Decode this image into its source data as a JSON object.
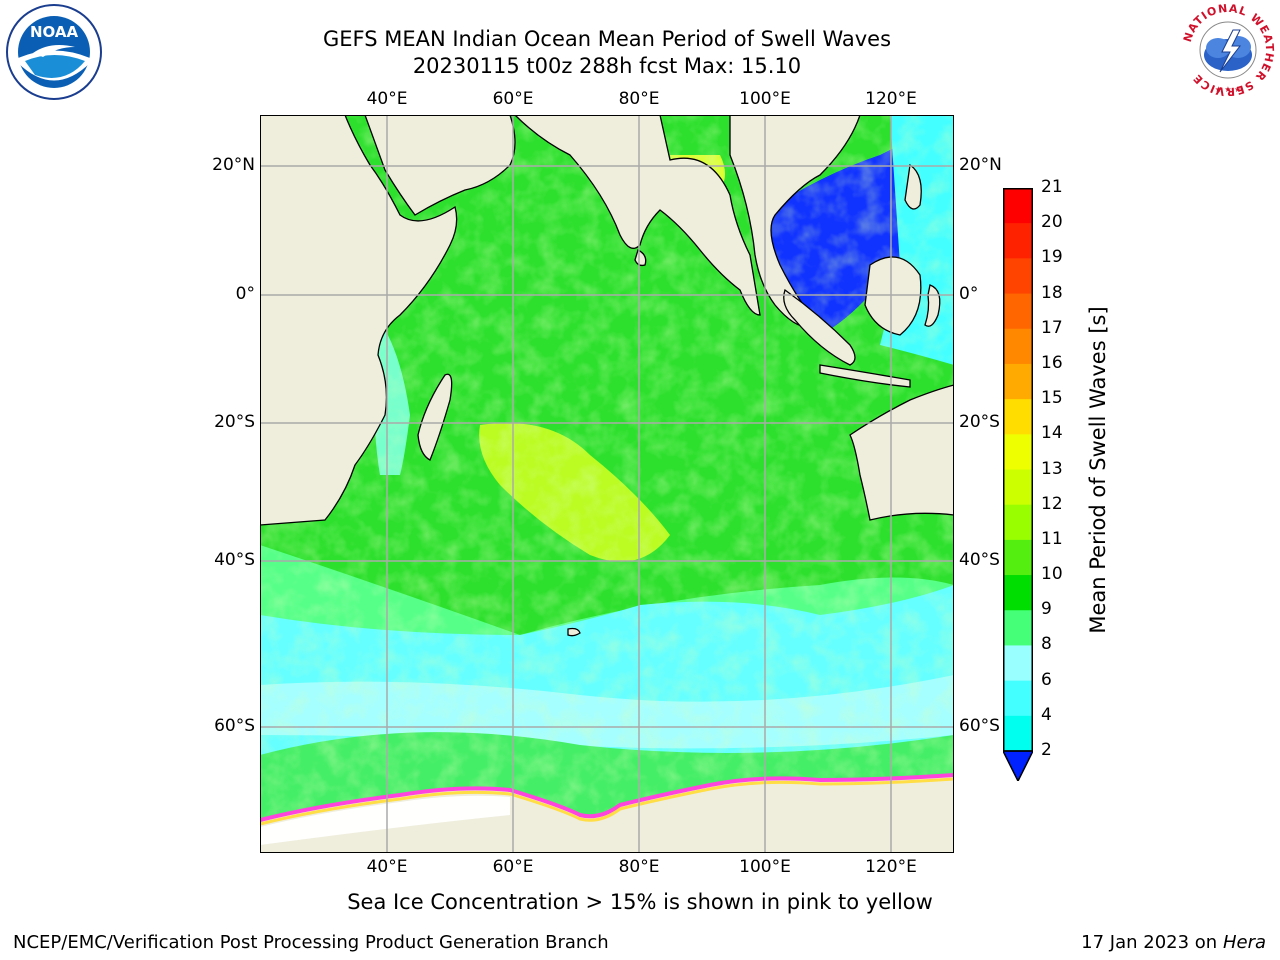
{
  "title": {
    "line1": "GEFS MEAN Indian Ocean Mean Period of Swell Waves",
    "line2": "20230115 t00z 288h fcst   Max: 15.10"
  },
  "map": {
    "lon_labels": [
      "40°E",
      "60°E",
      "80°E",
      "100°E",
      "120°E"
    ],
    "lat_labels": [
      "20°N",
      "0°",
      "20°S",
      "40°S",
      "60°S"
    ],
    "extent": {
      "lon_min": 20,
      "lon_max": 130,
      "lat_min": -75,
      "lat_max": 28
    },
    "ocean_color": "#2de02d",
    "land_color": "#efeedd"
  },
  "colorbar": {
    "title": "Mean Period of Swell Waves [s]",
    "ticks": [
      "21",
      "20",
      "19",
      "18",
      "17",
      "16",
      "15",
      "14",
      "13",
      "12",
      "11",
      "10",
      "9",
      "8",
      "6",
      "4",
      "2"
    ],
    "colors": [
      "#ff0000",
      "#ff2200",
      "#ff4400",
      "#ff6600",
      "#ff8800",
      "#ffaa00",
      "#ffdd00",
      "#eeff00",
      "#ccff00",
      "#99ff00",
      "#55ee11",
      "#00dd00",
      "#44ff77",
      "#99ffff",
      "#44ffff",
      "#00ffee",
      "#0088ff"
    ],
    "extend_color": "#0022ff"
  },
  "caption": "Sea Ice Concentration > 15% is shown in pink to yellow",
  "footer": {
    "left": "NCEP/EMC/Verification Post Processing Product Generation Branch",
    "right_date": "17 Jan 2023 on ",
    "right_host": "Hera"
  },
  "logos": {
    "left": {
      "text": "NOAA",
      "ring_text": "NATIONAL OCEANIC AND ATMOSPHERIC ADMINISTRATION · U.S. DEPARTMENT OF COMMERCE"
    },
    "right": {
      "ring_text": "NATIONAL WEATHER SERVICE"
    }
  }
}
